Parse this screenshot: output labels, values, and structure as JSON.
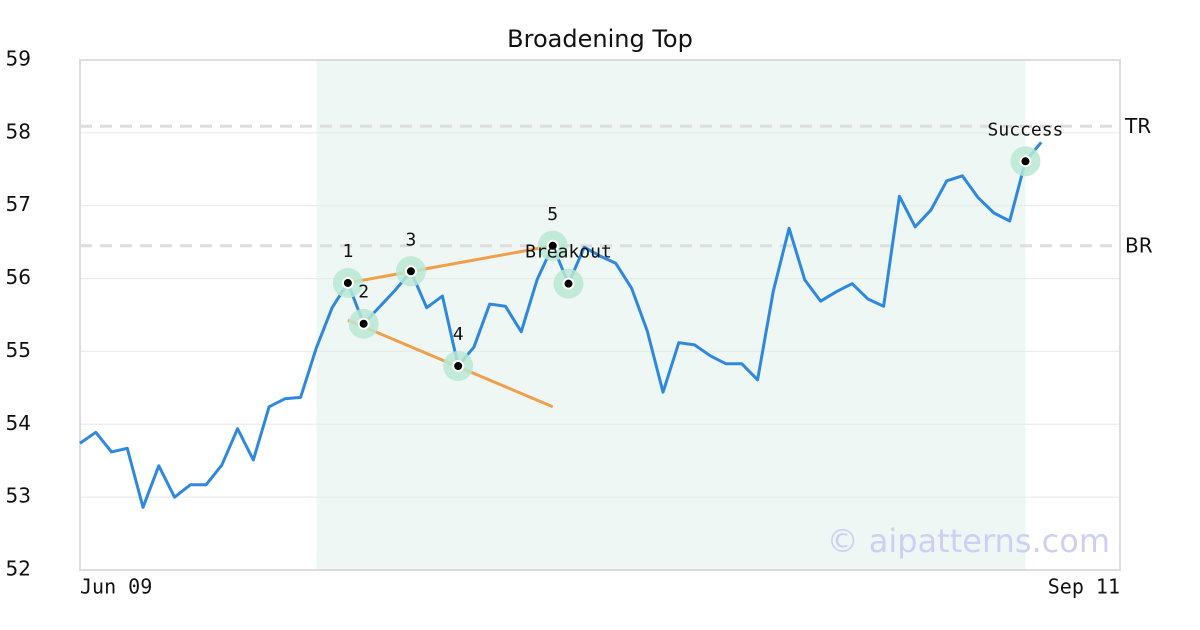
{
  "chart_data": {
    "type": "line",
    "title": "Broadening Top",
    "categories": [
      "Jun 09",
      null,
      null,
      null,
      null,
      null,
      null,
      null,
      null,
      null,
      null,
      null,
      null,
      null,
      null,
      null,
      null,
      null,
      null,
      null,
      null,
      null,
      null,
      null,
      null,
      null,
      null,
      null,
      null,
      null,
      null,
      null,
      null,
      null,
      null,
      null,
      null,
      null,
      null,
      null,
      null,
      null,
      null,
      null,
      null,
      null,
      null,
      null,
      null,
      null,
      null,
      null,
      null,
      null,
      null,
      null,
      null,
      null,
      null,
      null,
      null,
      null,
      null,
      null,
      null,
      null,
      "Sep 11"
    ],
    "values": [
      53.74,
      53.89,
      53.62,
      53.67,
      52.86,
      53.43,
      53.0,
      53.17,
      53.17,
      53.44,
      53.94,
      53.51,
      54.24,
      54.35,
      54.37,
      55.05,
      55.6,
      55.94,
      55.38,
      55.61,
      55.84,
      56.1,
      55.6,
      55.76,
      54.8,
      55.06,
      55.65,
      55.62,
      55.27,
      55.98,
      56.45,
      55.93,
      56.43,
      56.31,
      56.21,
      55.87,
      55.28,
      54.44,
      55.12,
      55.09,
      54.94,
      54.83,
      54.83,
      54.61,
      55.83,
      56.69,
      55.98,
      55.69,
      55.82,
      55.93,
      55.72,
      55.62,
      57.13,
      56.71,
      56.94,
      57.34,
      57.41,
      57.11,
      56.9,
      56.79,
      57.61,
      57.87,
      null,
      null,
      null,
      null,
      null
    ],
    "color": "#2f88e0",
    "ylim": [
      52,
      59
    ],
    "yticks": [
      52,
      53,
      54,
      55,
      56,
      57,
      58,
      59
    ],
    "grid": true,
    "highlight": {
      "start": 15,
      "end": 60,
      "color": "#eef7f3"
    },
    "reference_lines": [
      {
        "label": "TR",
        "value": 58.09
      },
      {
        "label": "BR",
        "value": 56.45
      }
    ],
    "trendlines": [
      {
        "start": [
          17,
          55.94
        ],
        "end": [
          30,
          56.45
        ]
      },
      {
        "start": [
          17,
          55.43
        ],
        "end": [
          30,
          54.24
        ]
      }
    ],
    "trendline_color": "#f0a04b",
    "annotations": [
      {
        "label": "1",
        "index": 17,
        "value": 55.94
      },
      {
        "label": "2",
        "index": 18,
        "value": 55.38
      },
      {
        "label": "3",
        "index": 21,
        "value": 56.1
      },
      {
        "label": "4",
        "index": 24,
        "value": 54.8
      },
      {
        "label": "5",
        "index": 30,
        "value": 56.45
      },
      {
        "label": "Breakout",
        "index": 31,
        "value": 55.93
      },
      {
        "label": "Success",
        "index": 60,
        "value": 57.61
      }
    ],
    "watermark": "© aipatterns.com"
  }
}
